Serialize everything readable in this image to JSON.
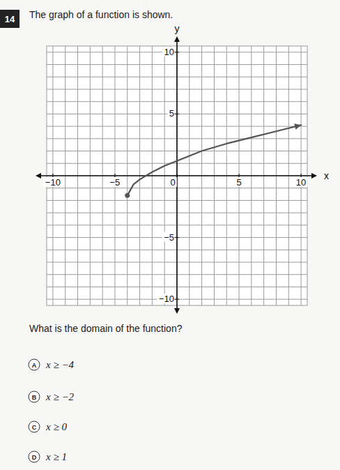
{
  "question_number": "14",
  "prompt": "The graph of a function is shown.",
  "question": "What is the domain of the function?",
  "choices": [
    {
      "letter": "A",
      "text": "x ≥ −4"
    },
    {
      "letter": "B",
      "text": "x ≥ −2"
    },
    {
      "letter": "C",
      "text": "x ≥ 0"
    },
    {
      "letter": "D",
      "text": "x ≥ 1"
    }
  ],
  "chart_data": {
    "type": "line",
    "x_label": "x",
    "y_label": "y",
    "x": [
      -4,
      -3.5,
      -3,
      -2,
      -1,
      0,
      2,
      4,
      6,
      8,
      10
    ],
    "values": [
      -1.6,
      -0.7,
      -0.3,
      0.3,
      0.8,
      1.2,
      2.0,
      2.6,
      3.1,
      3.6,
      4.1
    ],
    "color": "#555555",
    "marker": "endpoint",
    "line_style": "solid",
    "xlim": [
      -10.5,
      10.5
    ],
    "ylim": [
      -10.5,
      10.5
    ],
    "xticks": [
      -10,
      -5,
      0,
      5,
      10
    ],
    "yticks": [
      -10,
      -5,
      5,
      10
    ],
    "grid": true
  }
}
